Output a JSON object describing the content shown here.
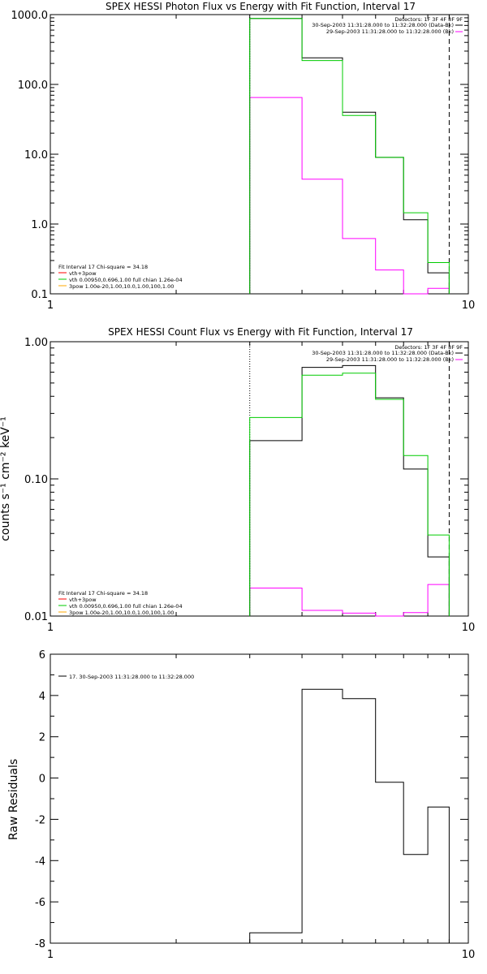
{
  "colors": {
    "data": "#000000",
    "fit_total": "#00cc00",
    "background": "#ff00ff",
    "vth_component": "#ff0000",
    "bpow_component": "#ffaa00",
    "axis": "#000000"
  },
  "chart_data": [
    {
      "type": "line",
      "title": "SPEX HESSI Photon Flux vs Energy with Fit Function, Interval 17",
      "xlabel": "",
      "ylabel": "",
      "xscale": "log",
      "yscale": "log",
      "xlim": [
        1,
        10
      ],
      "ylim": [
        0.1,
        1000
      ],
      "x_ticks": [
        "1",
        "10"
      ],
      "y_ticks": [
        "0.1",
        "1.0",
        "10.0",
        "100.0",
        "1000.0"
      ],
      "vlines": [
        3,
        9
      ],
      "bin_edges": [
        3,
        4,
        5,
        6,
        7,
        8,
        9
      ],
      "series": [
        {
          "values": [
            880,
            240,
            40,
            9,
            1.15,
            0.2
          ]
        },
        {
          "values": [
            880,
            220,
            36,
            9,
            1.45,
            0.28
          ]
        },
        {
          "values": [
            65,
            4.4,
            0.62,
            0.22,
            0.1,
            0.12
          ]
        }
      ],
      "detectors": "Detectors: 1F 3F 4F 8F 9F",
      "legend_right": [
        "30-Sep-2003 11:31:28.000 to 11:32:28.000 (Data-Bk)",
        "29-Sep-2003 11:31:28.000 to 11:32:28.000 (Bk)"
      ],
      "fit_header": "Fit Interval 17    Chi-square = 34.18",
      "fit_lines": [
        "vth+3pow",
        "vth 0.00950,0.696,1.00  full chian 1.26e-04",
        "3pow 1.00e-20,1.00,10.0,1.00,100,1.00"
      ]
    },
    {
      "type": "line",
      "title": "SPEX HESSI Count Flux vs Energy with Fit Function, Interval 17",
      "xlabel": "",
      "ylabel": "counts s⁻¹ cm⁻² keV⁻¹",
      "xscale": "log",
      "yscale": "log",
      "xlim": [
        1,
        10
      ],
      "ylim": [
        0.01,
        1.0
      ],
      "x_ticks": [
        "1",
        "10"
      ],
      "y_ticks": [
        "0.01",
        "0.10",
        "1.00"
      ],
      "vlines": [
        3,
        9
      ],
      "bin_edges": [
        3,
        4,
        5,
        6,
        7,
        8,
        9
      ],
      "series": [
        {
          "values": [
            0.19,
            0.65,
            0.67,
            0.39,
            0.118,
            0.027
          ]
        },
        {
          "values": [
            0.28,
            0.57,
            0.59,
            0.38,
            0.148,
            0.039
          ]
        },
        {
          "values": [
            0.016,
            0.011,
            0.0105,
            0.0095,
            0.0106,
            0.017
          ]
        }
      ],
      "detectors": "Detectors: 1F 3F 4F 8F 9F",
      "legend_right": [
        "30-Sep-2003 11:31:28.000 to 11:32:28.000 (Data-Bk)",
        "29-Sep-2003 11:31:28.000 to 11:32:28.000 (Bk)"
      ],
      "fit_header": "Fit Interval 17    Chi-square = 34.18",
      "fit_lines": [
        "vth+3pow",
        "vth 0.00950,0.696,1.00  full chian 1.26e-04",
        "3pow 1.00e-20,1.00,10.0,1.00,100,1.00"
      ]
    },
    {
      "type": "line",
      "title": "",
      "xlabel": "",
      "ylabel": "Raw Residuals",
      "xscale": "log",
      "yscale": "linear",
      "xlim": [
        1,
        10
      ],
      "ylim": [
        -8,
        6
      ],
      "x_ticks": [
        "1",
        "10"
      ],
      "y_ticks": [
        "-8",
        "-6",
        "-4",
        "-2",
        "0",
        "2",
        "4",
        "6"
      ],
      "bin_edges": [
        3,
        4,
        5,
        6,
        7,
        8,
        9
      ],
      "series": [
        {
          "values": [
            -7.5,
            4.3,
            3.85,
            -0.2,
            -3.7,
            -1.4
          ]
        }
      ],
      "legend_line": "17. 30-Sep-2003 11:31:28.000 to 11:32:28.000"
    }
  ]
}
